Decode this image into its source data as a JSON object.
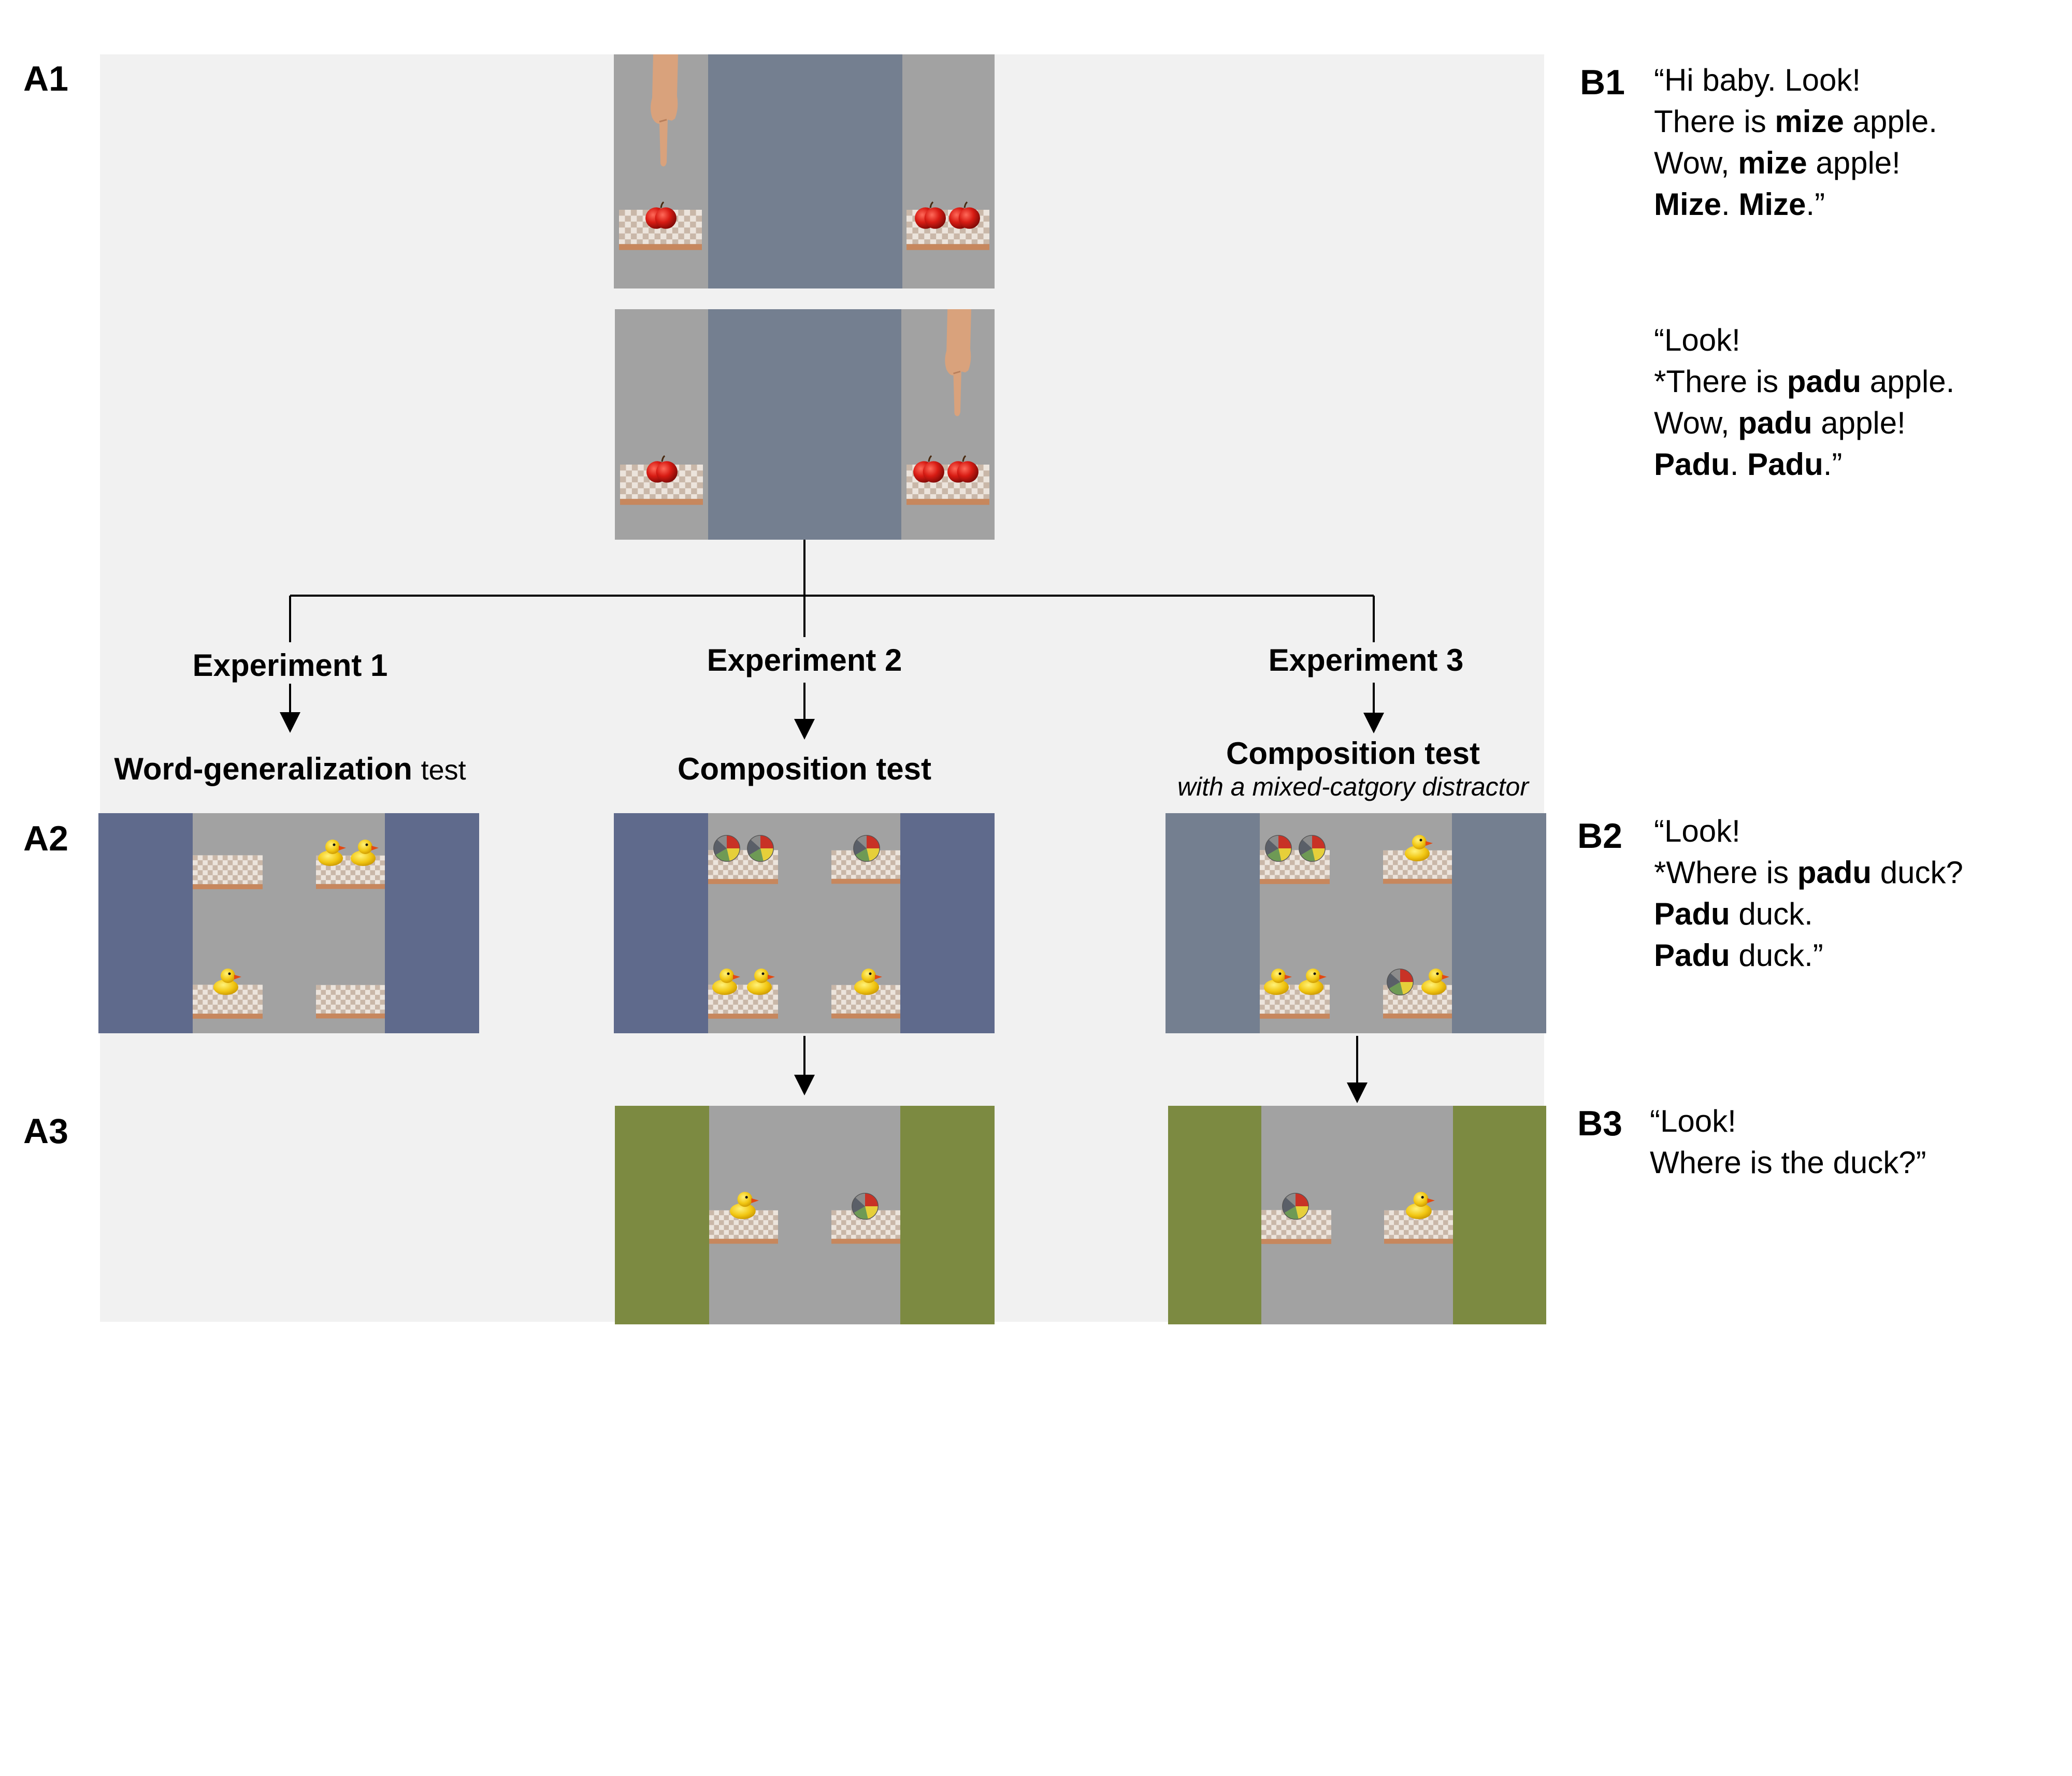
{
  "labels": {
    "a1": "A1",
    "a2": "A2",
    "a3": "A3",
    "b1": "B1",
    "b2": "B2",
    "b3": "B3"
  },
  "experiments": {
    "exp1": "Experiment 1",
    "exp2": "Experiment 2",
    "exp3": "Experiment 3"
  },
  "tests": {
    "exp1_main": "Word-generalization",
    "exp1_suffix": "test",
    "exp2": "Composition test",
    "exp3": "Composition test",
    "exp3_sub": "with a mixed-catgory distractor"
  },
  "speech_b1a": {
    "l1": "“Hi baby. Look!",
    "l2_pre": "There is ",
    "l2_word": "mize",
    "l2_post": " apple.",
    "l3_pre": "Wow, ",
    "l3_word": "mize",
    "l3_post": " apple!",
    "l4_w1": "Mize",
    "l4_mid": ". ",
    "l4_w2": "Mize",
    "l4_post": ".”"
  },
  "speech_b1b": {
    "l1": "“Look!",
    "l2_pre": "*There is ",
    "l2_word": "padu",
    "l2_post": " apple.",
    "l3_pre": "Wow, ",
    "l3_word": "padu",
    "l3_post": " apple!",
    "l4_w1": "Padu",
    "l4_mid": ". ",
    "l4_w2": "Padu",
    "l4_post": ".”"
  },
  "speech_b2": {
    "l1": "“Look!",
    "l2_pre": "*Where is ",
    "l2_word": "padu",
    "l2_post": " duck?",
    "l3_word": "Padu",
    "l3_post": " duck.",
    "l4_word": "Padu",
    "l4_post": " duck.”"
  },
  "speech_b3": {
    "l1": "“Look!",
    "l2": "Where is the duck?”"
  },
  "colors": {
    "panel_bg": "#f1f1f1",
    "occluder_gray": "#747f90",
    "side_blue": "#5f6a8c",
    "side_green": "#7c8a41",
    "scene_gray": "#a2a2a2"
  },
  "icons": [
    "hand-icon",
    "apple-icon",
    "duck-icon",
    "ball-icon",
    "tablecloth-icon"
  ]
}
